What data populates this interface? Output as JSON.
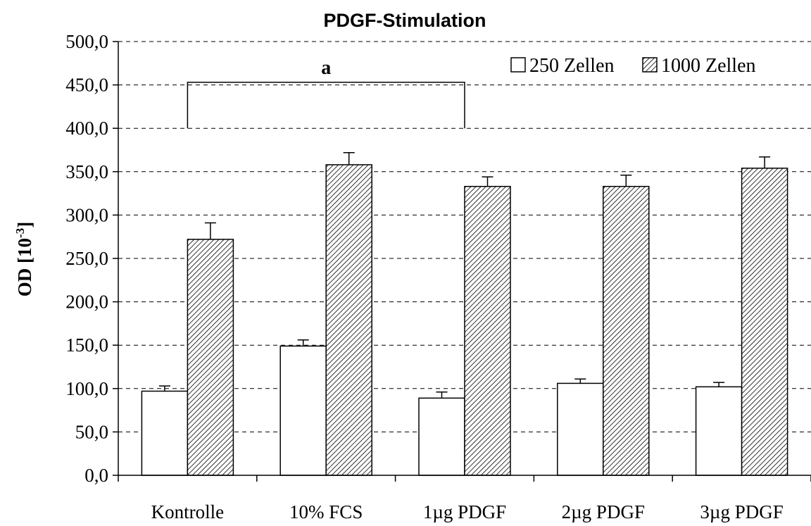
{
  "chart_data": {
    "type": "bar",
    "title": "PDGF-Stimulation",
    "ylabel": "OD [10",
    "ylabel_sup": "-3",
    "ylabel_end": "]",
    "xlabel": "",
    "ylim": [
      0,
      500
    ],
    "y_ticks": [
      "0,0",
      "50,0",
      "100,0",
      "150,0",
      "200,0",
      "250,0",
      "300,0",
      "350,0",
      "400,0",
      "450,0",
      "500,0"
    ],
    "grid": "horizontal dashed",
    "legend_position": "top-right",
    "categories": [
      "Kontrolle",
      "10% FCS",
      "1µg PDGF",
      "2µg PDGF",
      "3µg PDGF"
    ],
    "series": [
      {
        "name": "250 Zellen",
        "fill": "#ffffff",
        "values": [
          97,
          149,
          89,
          106,
          102
        ],
        "errors": [
          6,
          7,
          7,
          5,
          5
        ]
      },
      {
        "name": "1000 Zellen",
        "fill": "hatched",
        "values": [
          272,
          358,
          333,
          333,
          354
        ],
        "errors": [
          19,
          14,
          11,
          13,
          13
        ]
      }
    ],
    "annotation": {
      "label": "a",
      "from_category": 0,
      "to_category": 2,
      "level": 453,
      "drop_to": 400
    }
  }
}
